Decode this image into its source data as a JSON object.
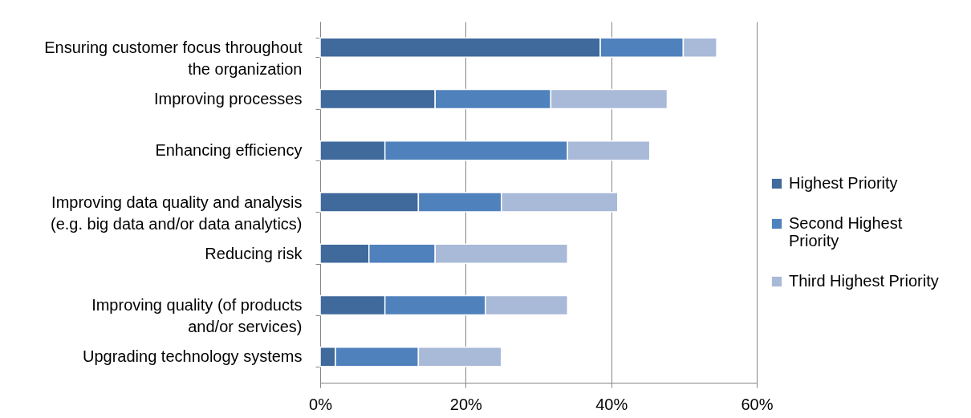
{
  "chart_data": {
    "type": "bar",
    "orientation": "horizontal",
    "stacked": true,
    "categories": [
      "Ensuring customer focus throughout the organization",
      "Improving processes",
      "Enhancing efficiency",
      "Improving data quality and analysis (e.g. big data and/or data analytics)",
      "Reducing risk",
      "Improving quality (of products and/or services)",
      "Upgrading technology systems"
    ],
    "series": [
      {
        "name": "Highest Priority",
        "color": "#40699c",
        "values": [
          38.5,
          15.8,
          8.9,
          13.5,
          6.7,
          8.9,
          2.1
        ]
      },
      {
        "name": "Second Highest Priority",
        "color": "#4f81bd",
        "values": [
          11.4,
          15.9,
          25.1,
          11.4,
          9.1,
          13.8,
          11.4
        ]
      },
      {
        "name": "Third Highest Priority",
        "color": "#a9b9d8",
        "values": [
          4.6,
          16.0,
          11.3,
          16.0,
          18.2,
          11.3,
          11.4
        ]
      }
    ],
    "xlim": [
      0,
      60
    ],
    "xticks": [
      {
        "value": 0,
        "label": "0%"
      },
      {
        "value": 20,
        "label": "20%"
      },
      {
        "value": 40,
        "label": "40%"
      },
      {
        "value": 60,
        "label": "60%"
      }
    ],
    "grid": "x",
    "legend": "right"
  }
}
